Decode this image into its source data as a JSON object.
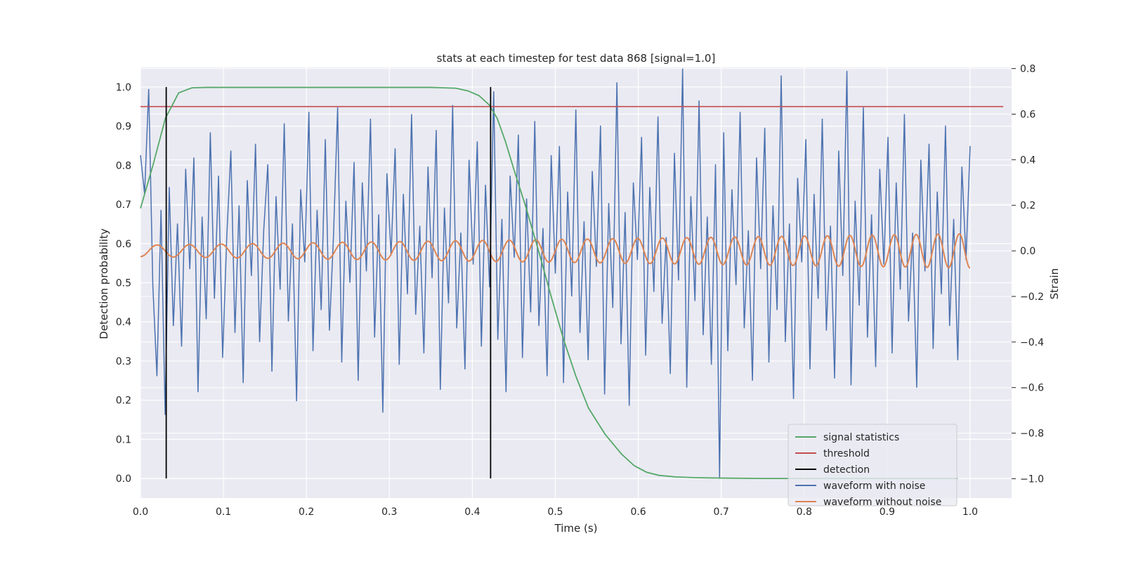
{
  "chart_data": {
    "type": "line",
    "title": "stats at each timestep for test data 868 [signal=1.0]",
    "xlabel": "Time (s)",
    "ylabel": "Detection probability",
    "ylabel_right": "Strain",
    "xlim": [
      0.0,
      1.05
    ],
    "ylim": [
      -0.05,
      1.05
    ],
    "ylim_right": [
      -1.085,
      0.805
    ],
    "x_ticks": [
      0.0,
      0.1,
      0.2,
      0.3,
      0.4,
      0.5,
      0.6,
      0.7,
      0.8,
      0.9,
      1.0
    ],
    "x_tick_labels": [
      "0.0",
      "0.1",
      "0.2",
      "0.3",
      "0.4",
      "0.5",
      "0.6",
      "0.7",
      "0.8",
      "0.9",
      "1.0"
    ],
    "y_ticks": [
      0.0,
      0.1,
      0.2,
      0.3,
      0.4,
      0.5,
      0.6,
      0.7,
      0.8,
      0.9,
      1.0
    ],
    "y_tick_labels": [
      "0.0",
      "0.1",
      "0.2",
      "0.3",
      "0.4",
      "0.5",
      "0.6",
      "0.7",
      "0.8",
      "0.9",
      "1.0"
    ],
    "y_right_ticks": [
      -1.0,
      -0.8,
      -0.6,
      -0.4,
      -0.2,
      0.0,
      0.2,
      0.4,
      0.6,
      0.8
    ],
    "y_right_tick_labels": [
      "−1.0",
      "−0.8",
      "−0.6",
      "−0.4",
      "−0.2",
      "0.0",
      "0.2",
      "0.4",
      "0.6",
      "0.8"
    ],
    "grid": true,
    "legend_position": "lower-right",
    "colors": {
      "background": "#eaeaf2",
      "grid": "#ffffff",
      "signal_statistics": "#55a868",
      "threshold": "#c44e52",
      "detection": "#000000",
      "waveform_with_noise": "#4c72b0",
      "waveform_without_noise": "#dd8452"
    },
    "series": [
      {
        "name": "signal statistics",
        "axis": "left",
        "x": [
          0.0,
          0.015,
          0.03,
          0.046,
          0.062,
          0.08,
          0.1,
          0.15,
          0.2,
          0.25,
          0.3,
          0.35,
          0.38,
          0.395,
          0.408,
          0.42,
          0.43,
          0.44,
          0.45,
          0.465,
          0.48,
          0.495,
          0.51,
          0.525,
          0.54,
          0.56,
          0.58,
          0.595,
          0.61,
          0.625,
          0.645,
          0.67,
          0.7,
          0.75,
          0.8,
          0.85,
          0.9,
          0.95,
          0.985
        ],
        "values": [
          0.69,
          0.8,
          0.92,
          0.985,
          0.998,
          0.999,
          0.999,
          0.999,
          0.999,
          0.999,
          0.999,
          0.999,
          0.997,
          0.99,
          0.978,
          0.955,
          0.92,
          0.86,
          0.79,
          0.69,
          0.58,
          0.465,
          0.355,
          0.26,
          0.18,
          0.113,
          0.062,
          0.033,
          0.016,
          0.008,
          0.004,
          0.002,
          0.001,
          0.0,
          0.0,
          0.0,
          0.0,
          0.0,
          0.0
        ]
      },
      {
        "name": "threshold",
        "axis": "left",
        "x": [
          0.0,
          1.04
        ],
        "values": [
          0.95,
          0.95
        ]
      },
      {
        "name": "detection",
        "axis": "left",
        "segments": [
          {
            "x": 0.031,
            "y_range": [
              0.0,
              1.0
            ]
          },
          {
            "x": 0.422,
            "y_range": [
              0.0,
              1.0
            ]
          }
        ]
      },
      {
        "name": "waveform with noise",
        "axis": "right",
        "x_range": [
          0.0,
          1.0
        ],
        "values": [
          0.42,
          0.25,
          0.71,
          -0.15,
          -0.55,
          0.18,
          -0.72,
          0.28,
          -0.33,
          0.12,
          -0.42,
          0.36,
          -0.08,
          0.41,
          -0.62,
          0.15,
          -0.3,
          0.52,
          -0.21,
          0.33,
          -0.47,
          0.06,
          0.44,
          -0.36,
          0.2,
          -0.58,
          0.31,
          -0.11,
          0.47,
          -0.4,
          0.09,
          0.38,
          -0.53,
          0.24,
          -0.17,
          0.56,
          -0.31,
          0.12,
          -0.66,
          0.27,
          -0.05,
          0.61,
          -0.44,
          0.18,
          -0.26,
          0.49,
          -0.35,
          0.07,
          0.63,
          -0.49,
          0.22,
          -0.14,
          0.39,
          -0.57,
          0.3,
          -0.09,
          0.58,
          -0.38,
          0.16,
          -0.71,
          0.34,
          -0.02,
          0.45,
          -0.5,
          0.25,
          -0.19,
          0.6,
          -0.28,
          0.11,
          -0.45,
          0.37,
          -0.12,
          0.53,
          -0.61,
          0.19,
          -0.23,
          0.64,
          -0.34,
          0.08,
          -0.52,
          0.4,
          -0.06,
          0.48,
          -0.42,
          0.29,
          -0.16,
          0.7,
          -0.39,
          0.14,
          -0.62,
          0.33,
          -0.03,
          0.51,
          -0.47,
          0.23,
          -0.27,
          0.57,
          -0.33,
          0.1,
          -0.55,
          0.42,
          -0.1,
          0.46,
          -0.58,
          0.26,
          -0.2,
          0.62,
          -0.36,
          0.13,
          -0.48,
          0.35,
          -0.07,
          0.55,
          -0.63,
          0.21,
          -0.25,
          0.74,
          -0.41,
          0.17,
          -0.68,
          0.3,
          -0.04,
          0.5,
          -0.46,
          0.28,
          -0.18,
          0.59,
          -0.32,
          0.06,
          -0.54,
          0.43,
          -0.13,
          0.8,
          -0.6,
          0.24,
          -0.22,
          0.66,
          -0.37,
          0.15,
          -0.5,
          0.38,
          -1.0,
          0.52,
          -0.44,
          0.27,
          -0.15,
          0.61,
          -0.34,
          0.09,
          -0.57,
          0.41,
          -0.08,
          0.54,
          -0.49,
          0.2,
          -0.26,
          0.77,
          -0.4,
          0.12,
          -0.65,
          0.32,
          -0.05,
          0.49,
          -0.52,
          0.25,
          -0.21,
          0.58,
          -0.35,
          0.11,
          -0.56,
          0.44,
          -0.11,
          0.79,
          -0.59,
          0.22,
          -0.24,
          0.63,
          -0.38,
          0.16,
          -0.51,
          0.36,
          -0.06,
          0.5,
          -0.45,
          0.3,
          -0.17,
          0.6,
          -0.31,
          0.08,
          -0.6,
          0.4,
          -0.09,
          0.47,
          -0.43,
          0.26,
          -0.19,
          0.55,
          -0.33,
          0.14,
          -0.48,
          0.37,
          -0.04,
          0.46
        ]
      },
      {
        "name": "waveform without noise",
        "axis": "right",
        "x_range": [
          0.0,
          1.0
        ],
        "description_values": {
          "start_freq_hz": 25,
          "end_freq_hz": 39,
          "start_amplitude": 0.025,
          "end_amplitude": 0.075
        }
      }
    ],
    "legend": [
      "signal statistics",
      "threshold",
      "detection",
      "waveform with noise",
      "waveform without noise"
    ]
  }
}
